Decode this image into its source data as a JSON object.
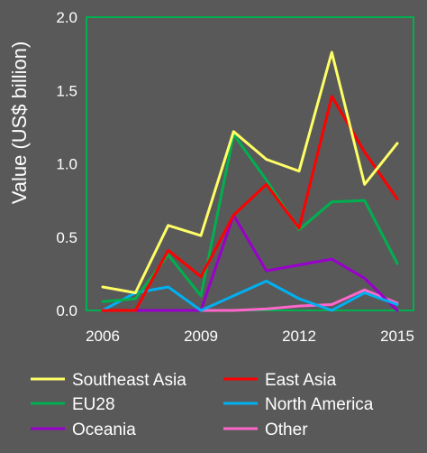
{
  "chart_data": {
    "type": "line",
    "ylabel": "Value (US$ billion)",
    "xlabel": "",
    "ylim": [
      0,
      2.0
    ],
    "xlim": [
      2006,
      2015
    ],
    "x": [
      2006,
      2007,
      2008,
      2009,
      2010,
      2011,
      2012,
      2013,
      2014,
      2015
    ],
    "xticks": [
      "2006",
      "2009",
      "2012",
      "2015"
    ],
    "yticks": [
      "0.0",
      "0.5",
      "1.0",
      "1.5",
      "2.0"
    ],
    "grid": false,
    "legend_position": "bottom",
    "plot_border_color": "#00b050",
    "series": [
      {
        "name": "Southeast Asia",
        "color": "#ffff66",
        "values": [
          0.16,
          0.12,
          0.58,
          0.51,
          1.22,
          1.03,
          0.95,
          1.76,
          0.86,
          1.14
        ]
      },
      {
        "name": "East Asia",
        "color": "#ff0000",
        "values": [
          0.0,
          0.0,
          0.41,
          0.23,
          0.65,
          0.86,
          0.56,
          1.46,
          1.08,
          0.76
        ]
      },
      {
        "name": "EU28",
        "color": "#00b050",
        "values": [
          0.06,
          0.08,
          0.38,
          0.1,
          1.2,
          0.89,
          0.55,
          0.74,
          0.75,
          0.32
        ]
      },
      {
        "name": "North America",
        "color": "#00b0f0",
        "values": [
          0.0,
          0.12,
          0.16,
          0.0,
          0.1,
          0.2,
          0.08,
          0.0,
          0.12,
          0.04
        ]
      },
      {
        "name": "Oceania",
        "color": "#9900cc",
        "values": [
          0.0,
          0.0,
          0.0,
          0.0,
          0.65,
          0.27,
          0.31,
          0.35,
          0.22,
          0.0
        ]
      },
      {
        "name": "Other",
        "color": "#ff66cc",
        "values": [
          0.0,
          0.0,
          0.0,
          0.0,
          0.0,
          0.01,
          0.03,
          0.04,
          0.14,
          0.05
        ]
      }
    ]
  }
}
